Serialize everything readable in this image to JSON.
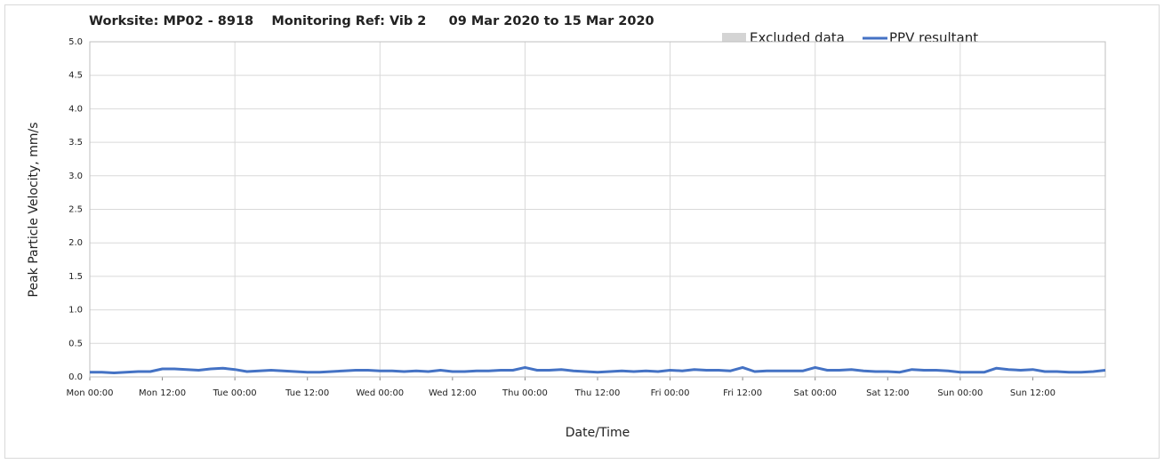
{
  "chart_data": {
    "type": "line",
    "title": "Worksite: MP02 - 8918    Monitoring Ref: Vib 2     09 Mar 2020 to 15 Mar 2020",
    "xlabel": "Date/Time",
    "ylabel": "Peak Particle Velocity, mm/s",
    "excluded_legend": {
      "name": "Excluded data",
      "color": "#d4d4d4"
    },
    "x": [
      0,
      2,
      4,
      6,
      8,
      10,
      12,
      14,
      16,
      18,
      20,
      22,
      24,
      26,
      28,
      30,
      32,
      34,
      36,
      38,
      40,
      42,
      44,
      46,
      48,
      50,
      52,
      54,
      56,
      58,
      60,
      62,
      64,
      66,
      68,
      70,
      72,
      74,
      76,
      78,
      80,
      82,
      84,
      86,
      88,
      90,
      92,
      94,
      96,
      98,
      100,
      102,
      104,
      106,
      108,
      110,
      112,
      114,
      116,
      118,
      120,
      122,
      124,
      126,
      128,
      130,
      132,
      134,
      136,
      138,
      140,
      142,
      144,
      146,
      148,
      150,
      152,
      154,
      156,
      158,
      160,
      162,
      164,
      166,
      168
    ],
    "series": [
      {
        "name": "PPV resultant",
        "color": "#4472c4",
        "values": [
          0.07,
          0.07,
          0.06,
          0.07,
          0.08,
          0.08,
          0.12,
          0.12,
          0.11,
          0.1,
          0.12,
          0.13,
          0.11,
          0.08,
          0.09,
          0.1,
          0.09,
          0.08,
          0.07,
          0.07,
          0.08,
          0.09,
          0.1,
          0.1,
          0.09,
          0.09,
          0.08,
          0.09,
          0.08,
          0.1,
          0.08,
          0.08,
          0.09,
          0.09,
          0.1,
          0.1,
          0.14,
          0.1,
          0.1,
          0.11,
          0.09,
          0.08,
          0.07,
          0.08,
          0.09,
          0.08,
          0.09,
          0.08,
          0.1,
          0.09,
          0.11,
          0.1,
          0.1,
          0.09,
          0.14,
          0.08,
          0.09,
          0.09,
          0.09,
          0.09,
          0.14,
          0.1,
          0.1,
          0.11,
          0.09,
          0.08,
          0.08,
          0.07,
          0.11,
          0.1,
          0.1,
          0.09,
          0.07,
          0.07,
          0.07,
          0.13,
          0.11,
          0.1,
          0.11,
          0.08,
          0.08,
          0.07,
          0.07,
          0.08,
          0.1
        ]
      }
    ],
    "xlim": [
      0,
      168
    ],
    "xticks": [
      {
        "value": 0,
        "label": "Mon 00:00"
      },
      {
        "value": 12,
        "label": "Mon 12:00"
      },
      {
        "value": 24,
        "label": "Tue 00:00"
      },
      {
        "value": 36,
        "label": "Tue 12:00"
      },
      {
        "value": 48,
        "label": "Wed 00:00"
      },
      {
        "value": 60,
        "label": "Wed 12:00"
      },
      {
        "value": 72,
        "label": "Thu 00:00"
      },
      {
        "value": 84,
        "label": "Thu 12:00"
      },
      {
        "value": 96,
        "label": "Fri 00:00"
      },
      {
        "value": 108,
        "label": "Fri 12:00"
      },
      {
        "value": 120,
        "label": "Sat 00:00"
      },
      {
        "value": 132,
        "label": "Sat 12:00"
      },
      {
        "value": 144,
        "label": "Sun 00:00"
      },
      {
        "value": 156,
        "label": "Sun 12:00"
      }
    ],
    "ylim": [
      0,
      5
    ],
    "yticks": [
      {
        "value": 0,
        "label": "0.0"
      },
      0.5,
      {
        "value": 1,
        "label": "1.0"
      },
      1.5,
      {
        "value": 2,
        "label": "2.0"
      },
      2.5,
      {
        "value": 3,
        "label": "3.0"
      },
      3.5,
      {
        "value": 4,
        "label": "4.0"
      },
      4.5,
      {
        "value": 5,
        "label": "5.0"
      }
    ],
    "grid": true
  }
}
